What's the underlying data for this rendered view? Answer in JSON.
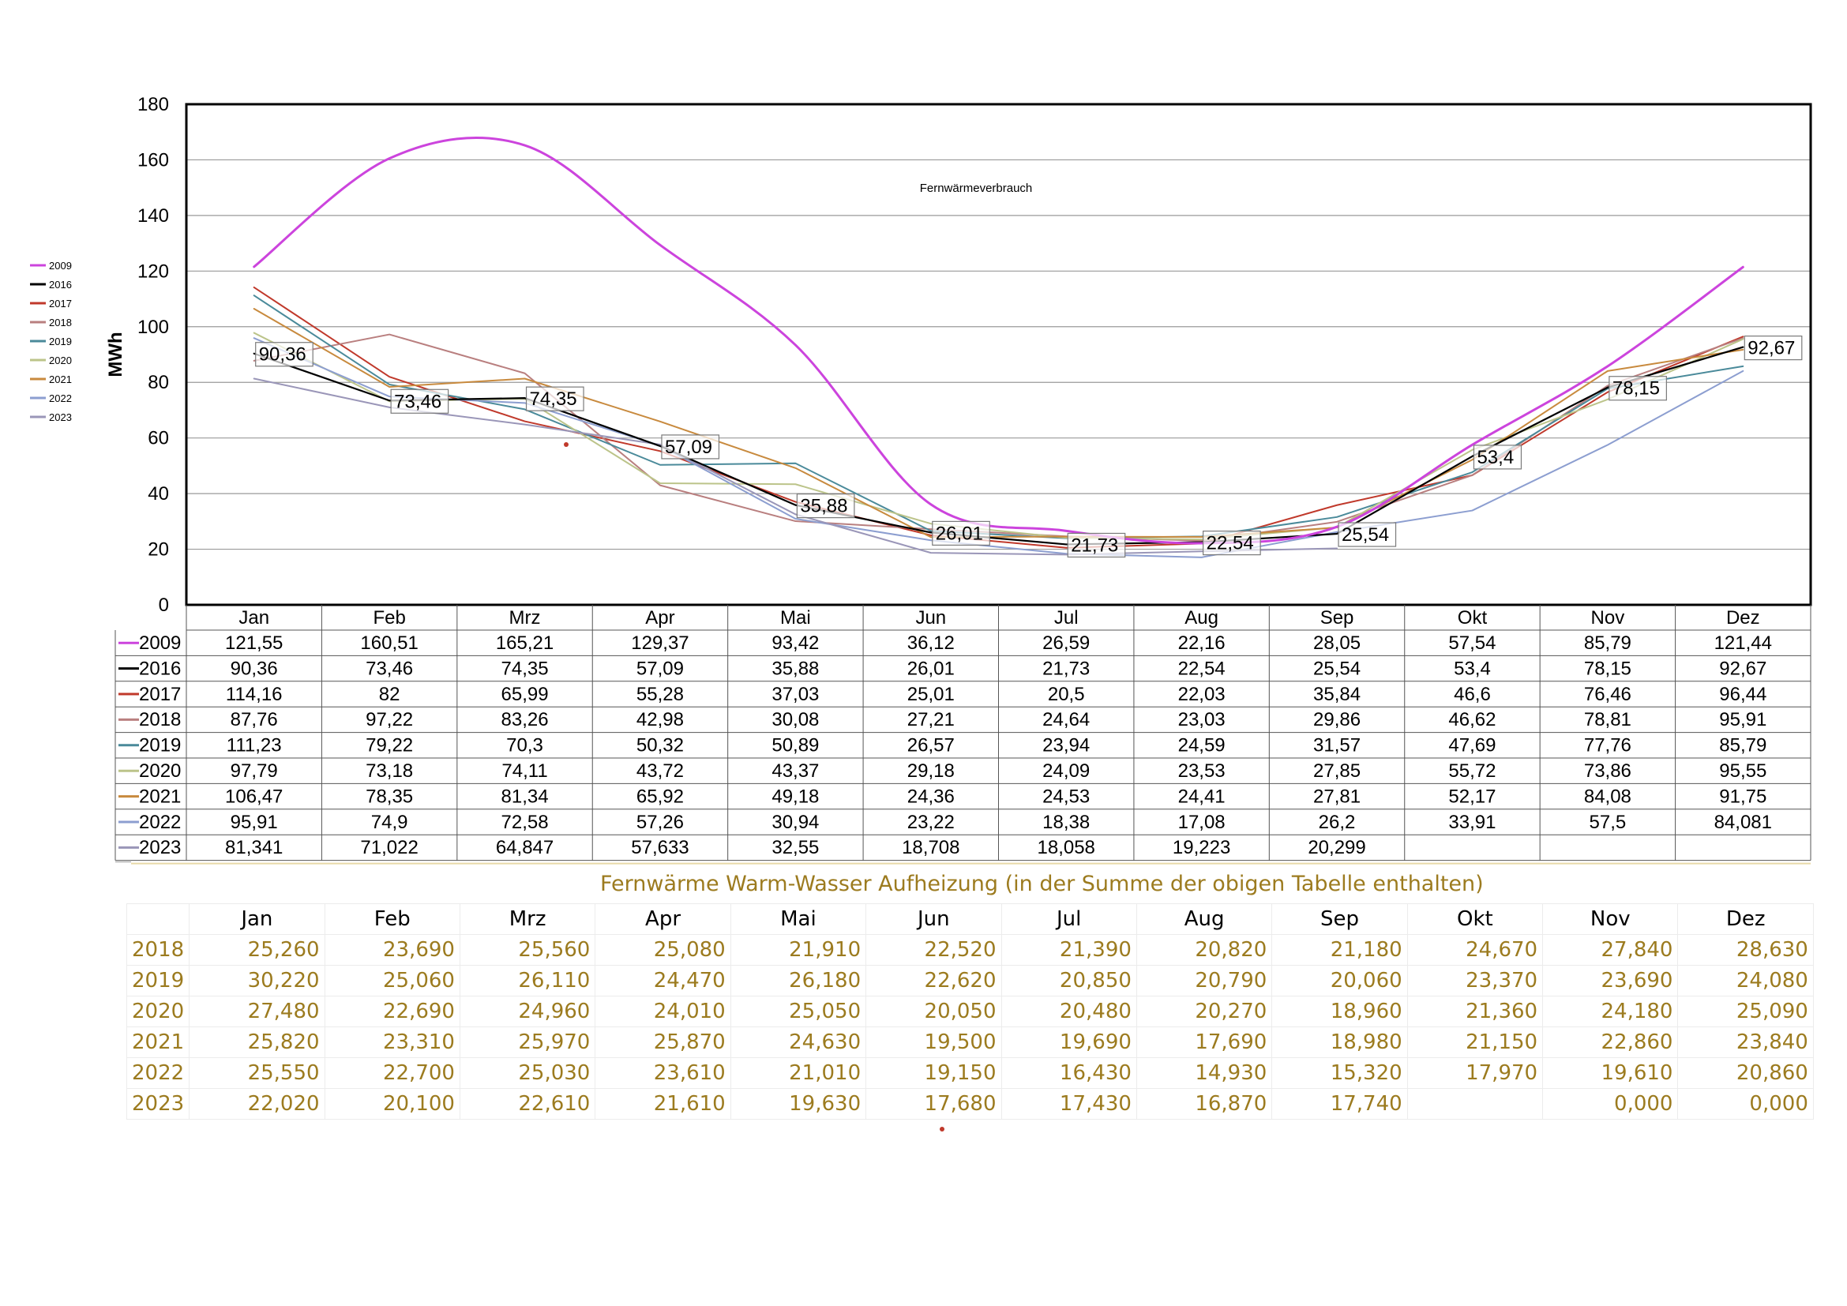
{
  "chart_data": {
    "type": "line",
    "title": "Fernwärmeverbrauch",
    "ylabel": "MWh",
    "xlabel": "",
    "ylim": [
      0,
      180
    ],
    "yticks": [
      0,
      20,
      40,
      60,
      80,
      100,
      120,
      140,
      160,
      180
    ],
    "grid": true,
    "legend_position": "left",
    "categories": [
      "Jan",
      "Feb",
      "Mrz",
      "Apr",
      "Mai",
      "Jun",
      "Jul",
      "Aug",
      "Sep",
      "Okt",
      "Nov",
      "Dez"
    ],
    "series": [
      {
        "name": "2009",
        "color": "#cc44dd",
        "smooth": true,
        "width": 3,
        "values": [
          "121,55",
          "160,51",
          "165,21",
          "129,37",
          "93,42",
          "36,12",
          "26,59",
          "22,16",
          "28,05",
          "57,54",
          "85,79",
          "121,44"
        ]
      },
      {
        "name": "2016",
        "color": "#000000",
        "width": 2.2,
        "labeled": true,
        "values": [
          "90,36",
          "73,46",
          "74,35",
          "57,09",
          "35,88",
          "26,01",
          "21,73",
          "22,54",
          "25,54",
          "53,4",
          "78,15",
          "92,67"
        ]
      },
      {
        "name": "2017",
        "color": "#c0392b",
        "width": 2,
        "values": [
          "114,16",
          "82",
          "65,99",
          "55,28",
          "37,03",
          "25,01",
          "20,5",
          "22,03",
          "35,84",
          "46,6",
          "76,46",
          "96,44"
        ]
      },
      {
        "name": "2018",
        "color": "#b97f7f",
        "width": 2,
        "values": [
          "87,76",
          "97,22",
          "83,26",
          "42,98",
          "30,08",
          "27,21",
          "24,64",
          "23,03",
          "29,86",
          "46,62",
          "78,81",
          "95,91"
        ]
      },
      {
        "name": "2019",
        "color": "#4a8a9a",
        "width": 2,
        "values": [
          "111,23",
          "79,22",
          "70,3",
          "50,32",
          "50,89",
          "26,57",
          "23,94",
          "24,59",
          "31,57",
          "47,69",
          "77,76",
          "85,79"
        ]
      },
      {
        "name": "2020",
        "color": "#bcc48a",
        "width": 2,
        "values": [
          "97,79",
          "73,18",
          "74,11",
          "43,72",
          "43,37",
          "29,18",
          "24,09",
          "23,53",
          "27,85",
          "55,72",
          "73,86",
          "95,55"
        ]
      },
      {
        "name": "2021",
        "color": "#c88a3e",
        "width": 2,
        "values": [
          "106,47",
          "78,35",
          "81,34",
          "65,92",
          "49,18",
          "24,36",
          "24,53",
          "24,41",
          "27,81",
          "52,17",
          "84,08",
          "91,75"
        ]
      },
      {
        "name": "2022",
        "color": "#8c9ed0",
        "width": 2,
        "values": [
          "95,91",
          "74,9",
          "72,58",
          "57,26",
          "30,94",
          "23,22",
          "18,38",
          "17,08",
          "26,2",
          "33,91",
          "57,5",
          "84,081"
        ]
      },
      {
        "name": "2023",
        "color": "#9a96b8",
        "width": 2,
        "values": [
          "81,341",
          "71,022",
          "64,847",
          "57,633",
          "32,55",
          "18,708",
          "18,058",
          "19,223",
          "20,299",
          "",
          "",
          ""
        ]
      }
    ]
  },
  "warmwasser": {
    "title": "Fernwärme  Warm-Wasser Aufheizung (in der Summe der obigen Tabelle enthalten)",
    "months": [
      "Jan",
      "Feb",
      "Mrz",
      "Apr",
      "Mai",
      "Jun",
      "Jul",
      "Aug",
      "Sep",
      "Okt",
      "Nov",
      "Dez"
    ],
    "rows": [
      {
        "year": "2018",
        "values": [
          "25,260",
          "23,690",
          "25,560",
          "25,080",
          "21,910",
          "22,520",
          "21,390",
          "20,820",
          "21,180",
          "24,670",
          "27,840",
          "28,630"
        ]
      },
      {
        "year": "2019",
        "values": [
          "30,220",
          "25,060",
          "26,110",
          "24,470",
          "26,180",
          "22,620",
          "20,850",
          "20,790",
          "20,060",
          "23,370",
          "23,690",
          "24,080"
        ]
      },
      {
        "year": "2020",
        "values": [
          "27,480",
          "22,690",
          "24,960",
          "24,010",
          "25,050",
          "20,050",
          "20,480",
          "20,270",
          "18,960",
          "21,360",
          "24,180",
          "25,090"
        ]
      },
      {
        "year": "2021",
        "values": [
          "25,820",
          "23,310",
          "25,970",
          "25,870",
          "24,630",
          "19,500",
          "19,690",
          "17,690",
          "18,980",
          "21,150",
          "22,860",
          "23,840"
        ]
      },
      {
        "year": "2022",
        "values": [
          "25,550",
          "22,700",
          "25,030",
          "23,610",
          "21,010",
          "19,150",
          "16,430",
          "14,930",
          "15,320",
          "17,970",
          "19,610",
          "20,860"
        ]
      },
      {
        "year": "2023",
        "values": [
          "22,020",
          "20,100",
          "22,610",
          "21,610",
          "19,630",
          "17,680",
          "17,430",
          "16,870",
          "17,740",
          "",
          "0,000",
          "0,000"
        ]
      }
    ]
  }
}
